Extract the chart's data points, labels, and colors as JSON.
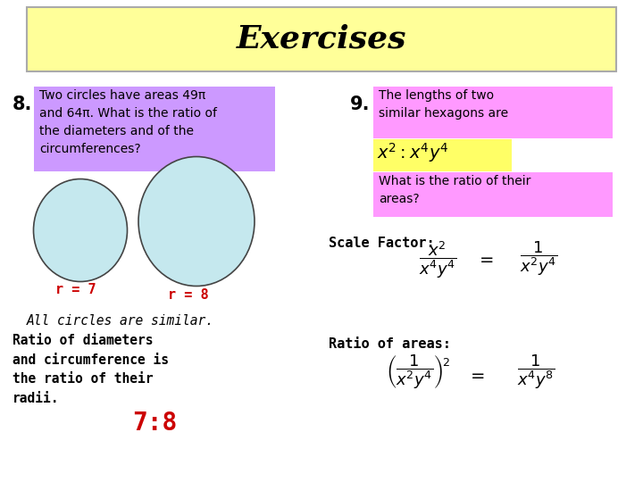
{
  "title": "Exercises",
  "title_bg": "#FFFF99",
  "bg_color": "#FFFFFF",
  "purple_bg": "#CC99FF",
  "pink_bg": "#FF99FF",
  "yellow_bg": "#FFFF66",
  "circle_fill": "#C5E8EE",
  "circle_edge": "#444444",
  "red_color": "#CC0000",
  "black_color": "#000000",
  "num8_text": "Two circles have areas 49π\nand 64π. What is the ratio of\nthe diameters and of the\ncircumferences?",
  "num9_top": "The lengths of two\nsimilar hexagons are",
  "num9_question": "What is the ratio of their\nareas?",
  "scale_factor_label": "Scale Factor:",
  "all_circles_text": "All circles are similar.",
  "ratio_text": "Ratio of diameters\nand circumference is\nthe ratio of their\nradii.",
  "ratio_value": "7:8",
  "r7_label": "r = 7",
  "r8_label": "r = 8",
  "ratio_of_areas": "Ratio of areas:"
}
